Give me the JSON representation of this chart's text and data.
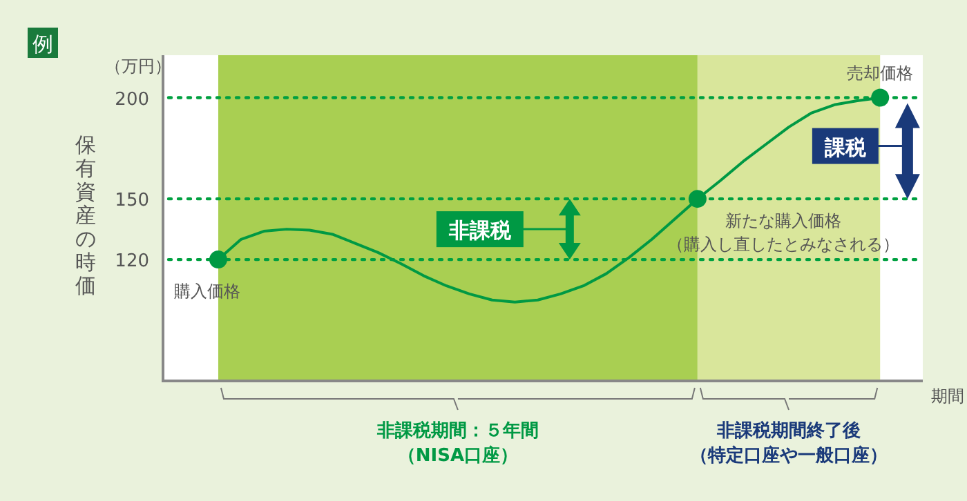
{
  "chart_data": {
    "type": "line",
    "title": "例",
    "ylabel": "保有資産の時価",
    "xlabel": "期間",
    "categories": [
      null,
      null,
      null,
      null,
      null,
      null,
      null,
      null,
      null,
      null,
      null,
      null,
      null,
      null,
      null,
      null,
      null,
      null,
      null,
      null,
      null,
      null,
      null,
      null,
      null,
      null,
      null,
      null,
      null,
      null
    ],
    "series": [
      {
        "type": "line",
        "color": "#009944",
        "values": [
          120,
          130,
          134,
          135,
          134.5,
          132.5,
          128,
          123.5,
          118,
          112,
          107,
          103,
          100,
          99,
          100,
          103,
          107,
          113,
          121,
          130,
          140,
          150,
          159,
          168.5,
          177,
          185.5,
          192.5,
          196.5,
          198.5,
          200
        ]
      },
      {
        "type": "scatter",
        "marker": "circle",
        "color": "#009944",
        "values": [
          120,
          null,
          null,
          null,
          null,
          null,
          null,
          null,
          null,
          null,
          null,
          null,
          null,
          null,
          null,
          null,
          null,
          null,
          null,
          null,
          null,
          150,
          null,
          null,
          null,
          null,
          null,
          null,
          null,
          200
        ]
      }
    ],
    "ylim": [
      60,
      221
    ],
    "yticks": [
      120,
      150,
      200
    ],
    "tick_labels": "y",
    "grid": false,
    "ref_lines": [
      {
        "axis": "y",
        "value": 200,
        "line_style": "dotted",
        "color": "#00a040"
      },
      {
        "axis": "y",
        "value": 150,
        "line_style": "dotted",
        "color": "#00a040"
      },
      {
        "axis": "y",
        "value": 120,
        "line_style": "dotted",
        "color": "#00a040"
      }
    ],
    "annotations": [
      "（万円）",
      {
        "text": "購入価格",
        "y": 120
      },
      {
        "text": "新たな購入価格",
        "y": 150
      },
      "（購入し直したとみなされる）",
      {
        "text": "売却価格",
        "y": 200
      },
      "非課税",
      "課税",
      "非課税期間：５年間",
      "（NISA口座）",
      "非課税期間終了後",
      "（特定口座や一般口座）"
    ]
  }
}
